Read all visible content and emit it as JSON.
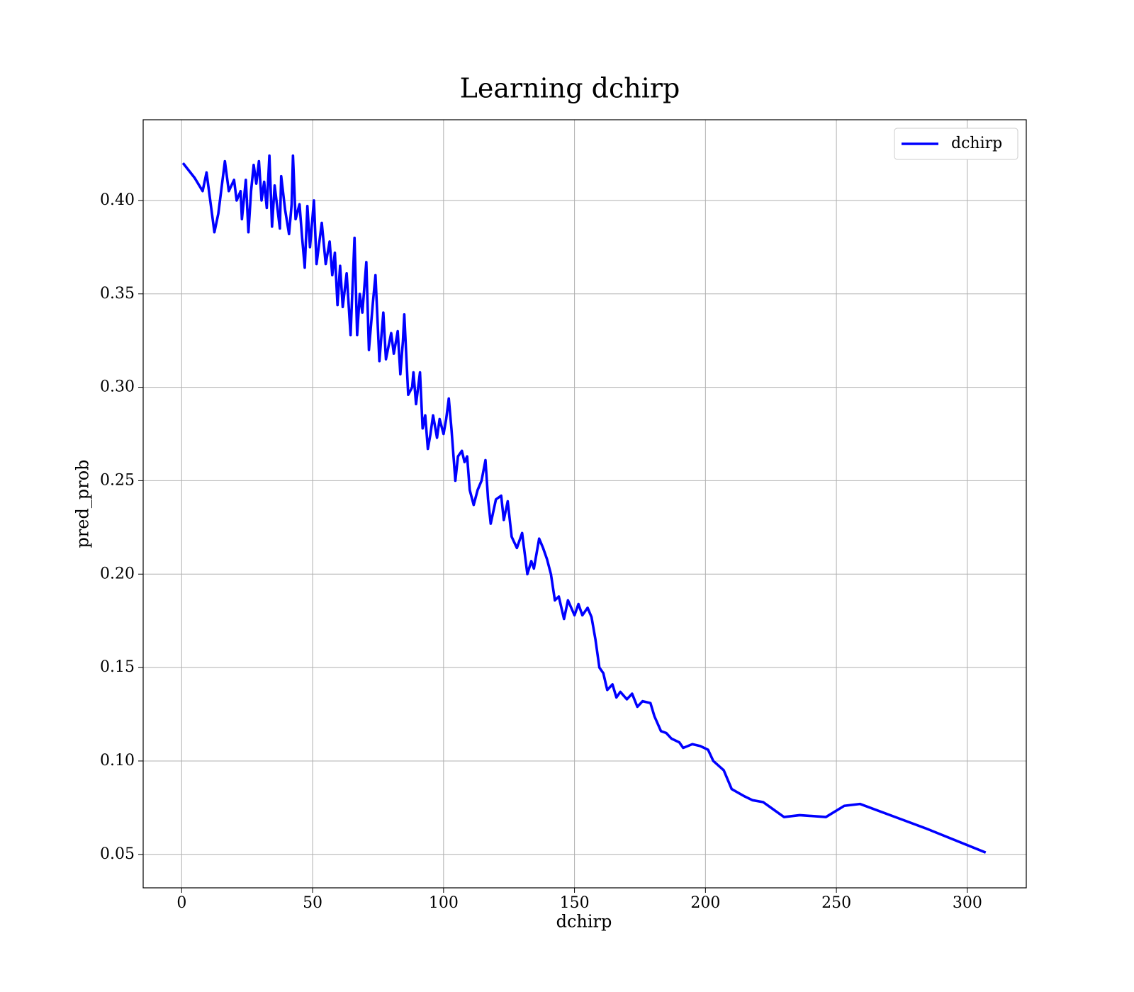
{
  "chart_data": {
    "type": "line",
    "title": "Learning dchirp",
    "xlabel": "dchirp",
    "ylabel": "pred_prob",
    "x": [
      0.5,
      5,
      8,
      9.5,
      12.5,
      14,
      16.5,
      18,
      20,
      21,
      22.5,
      23,
      24.5,
      25.5,
      26.5,
      27.5,
      28.5,
      29.5,
      30.5,
      31.5,
      32.5,
      33.5,
      34.5,
      35.5,
      37.5,
      38,
      39.5,
      41,
      42,
      42.5,
      43.5,
      45,
      46,
      47,
      48,
      49,
      50.5,
      51.5,
      53.5,
      55,
      56.5,
      57.5,
      58.5,
      59.5,
      60.5,
      61.5,
      63,
      64.5,
      66,
      67,
      68,
      69,
      70.5,
      71.5,
      73,
      74,
      75.5,
      77,
      78,
      80,
      81,
      82.5,
      83.5,
      84.5,
      85,
      86.5,
      88,
      88.5,
      89.5,
      91,
      92,
      93,
      94,
      95,
      96,
      97.5,
      98.5,
      100,
      101,
      102,
      103,
      104.5,
      105.5,
      107,
      108,
      109,
      110,
      111.5,
      113,
      114.5,
      116,
      117,
      118,
      120,
      122,
      123,
      124.5,
      126,
      128,
      130,
      132,
      133.5,
      134.5,
      136.5,
      138,
      139.5,
      141,
      142.5,
      144,
      146,
      147.5,
      150,
      151.5,
      153,
      155,
      156.5,
      158,
      159.5,
      161,
      162.5,
      164.5,
      166,
      167.5,
      170,
      172,
      174,
      176,
      179,
      180.5,
      183,
      185,
      187,
      190,
      191.5,
      195,
      198,
      201,
      203,
      207,
      210,
      215,
      218,
      222,
      226,
      230,
      236,
      246,
      253,
      259,
      284,
      307
    ],
    "series": [
      {
        "name": "dchirp",
        "color": "#0000ff",
        "values": [
          0.42,
          0.412,
          0.405,
          0.415,
          0.383,
          0.393,
          0.421,
          0.405,
          0.411,
          0.4,
          0.405,
          0.39,
          0.411,
          0.383,
          0.405,
          0.419,
          0.409,
          0.421,
          0.4,
          0.41,
          0.396,
          0.424,
          0.386,
          0.408,
          0.385,
          0.413,
          0.395,
          0.382,
          0.398,
          0.424,
          0.39,
          0.398,
          0.38,
          0.364,
          0.397,
          0.375,
          0.4,
          0.366,
          0.388,
          0.366,
          0.378,
          0.36,
          0.372,
          0.344,
          0.365,
          0.343,
          0.361,
          0.328,
          0.38,
          0.328,
          0.35,
          0.34,
          0.367,
          0.32,
          0.345,
          0.36,
          0.314,
          0.34,
          0.315,
          0.329,
          0.318,
          0.33,
          0.307,
          0.325,
          0.339,
          0.296,
          0.3,
          0.308,
          0.291,
          0.308,
          0.278,
          0.285,
          0.267,
          0.275,
          0.285,
          0.273,
          0.283,
          0.275,
          0.283,
          0.294,
          0.278,
          0.25,
          0.263,
          0.266,
          0.26,
          0.263,
          0.245,
          0.237,
          0.245,
          0.25,
          0.261,
          0.24,
          0.227,
          0.24,
          0.242,
          0.229,
          0.239,
          0.22,
          0.214,
          0.222,
          0.2,
          0.207,
          0.203,
          0.219,
          0.214,
          0.208,
          0.2,
          0.186,
          0.188,
          0.176,
          0.186,
          0.178,
          0.184,
          0.178,
          0.182,
          0.177,
          0.165,
          0.15,
          0.147,
          0.138,
          0.141,
          0.134,
          0.137,
          0.133,
          0.136,
          0.129,
          0.132,
          0.131,
          0.124,
          0.116,
          0.115,
          0.112,
          0.11,
          0.107,
          0.109,
          0.108,
          0.106,
          0.1,
          0.095,
          0.085,
          0.081,
          0.079,
          0.078,
          0.074,
          0.07,
          0.071,
          0.07,
          0.076,
          0.077,
          0.064,
          0.051
        ]
      }
    ],
    "xlim": [
      -14.7,
      322.5
    ],
    "ylim": [
      0.0321,
      0.4432
    ],
    "xticks": [
      0,
      50,
      100,
      150,
      200,
      250,
      300
    ],
    "yticks": [
      0.05,
      {
        "value": 0.1,
        "label": "0.10"
      },
      0.15,
      {
        "value": 0.2,
        "label": "0.20"
      },
      0.25,
      {
        "value": 0.3,
        "label": "0.30"
      },
      0.35,
      {
        "value": 0.4,
        "label": "0.40"
      }
    ],
    "grid": true,
    "legend": "upper right"
  }
}
